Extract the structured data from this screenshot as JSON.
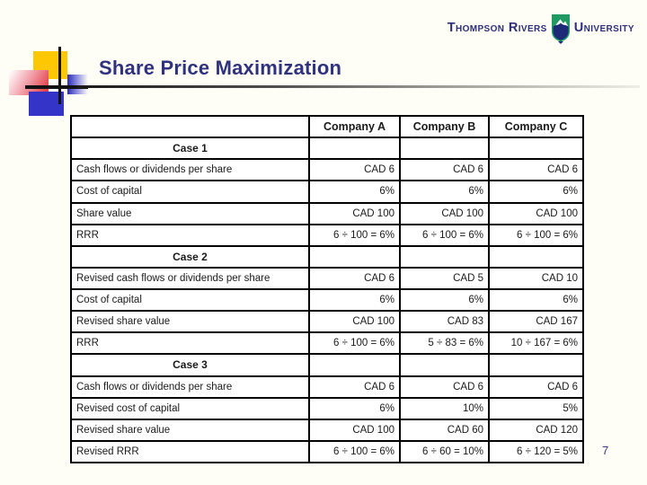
{
  "slide": {
    "title": "Share Price Maximization",
    "page_number": "7",
    "background_color": "#fffef6",
    "title_color": "#2f327f"
  },
  "logo": {
    "left_text": "Thompson Rivers",
    "right_text": "University",
    "shield_icon": "university-shield-icon",
    "text_color": "#2c2e7a",
    "shield_green": "#1f9a62",
    "shield_navy": "#1e2a78"
  },
  "decor": {
    "yellow_square": "#fdc704",
    "red_square": "#e43d47",
    "blue_square": "#3434c8",
    "line_color": "#121212"
  },
  "table": {
    "columns": [
      "",
      "Company A",
      "Company B",
      "Company C"
    ],
    "rows": [
      {
        "type": "case",
        "label": "Case 1"
      },
      {
        "type": "data",
        "label": "Cash flows or dividends per share",
        "values": [
          "CAD 6",
          "CAD 6",
          "CAD 6"
        ]
      },
      {
        "type": "data",
        "label": "Cost of capital",
        "values": [
          "6%",
          "6%",
          "6%"
        ]
      },
      {
        "type": "data",
        "label": "Share value",
        "values": [
          "CAD 100",
          "CAD 100",
          "CAD 100"
        ]
      },
      {
        "type": "data",
        "label": "RRR",
        "values": [
          "6 ÷ 100 = 6%",
          "6 ÷ 100 = 6%",
          "6 ÷ 100 = 6%"
        ]
      },
      {
        "type": "case",
        "label": "Case 2"
      },
      {
        "type": "data",
        "label": "Revised cash flows or dividends per share",
        "values": [
          "CAD 6",
          "CAD 5",
          "CAD 10"
        ]
      },
      {
        "type": "data",
        "label": "Cost of capital",
        "values": [
          "6%",
          "6%",
          "6%"
        ]
      },
      {
        "type": "data",
        "label": "Revised share value",
        "values": [
          "CAD 100",
          "CAD 83",
          "CAD 167"
        ]
      },
      {
        "type": "data",
        "label": "RRR",
        "values": [
          "6 ÷ 100 = 6%",
          "5 ÷ 83 = 6%",
          "10 ÷ 167 = 6%"
        ]
      },
      {
        "type": "case",
        "label": "Case 3"
      },
      {
        "type": "data",
        "label": "Cash flows or dividends per share",
        "values": [
          "CAD 6",
          "CAD 6",
          "CAD 6"
        ]
      },
      {
        "type": "data",
        "label": "Revised cost of capital",
        "values": [
          "6%",
          "10%",
          "5%"
        ]
      },
      {
        "type": "data",
        "label": "Revised share value",
        "values": [
          "CAD 100",
          "CAD 60",
          "CAD 120"
        ]
      },
      {
        "type": "data",
        "label": "Revised RRR",
        "values": [
          "6 ÷ 100 = 6%",
          "6 ÷ 60 = 10%",
          "6 ÷ 120 = 5%"
        ]
      }
    ]
  }
}
